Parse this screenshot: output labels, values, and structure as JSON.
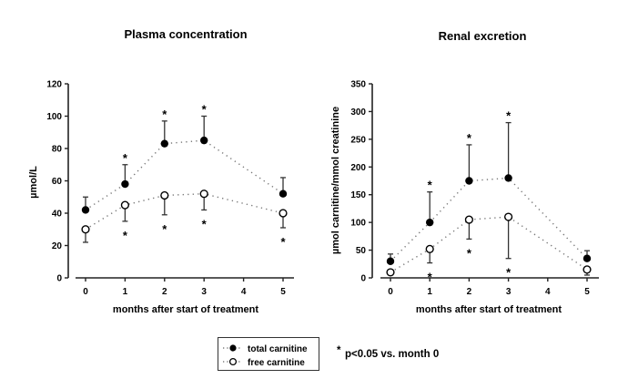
{
  "chart_data": [
    {
      "type": "line",
      "title": "Plasma concentration",
      "xlabel": "months after start of treatment",
      "ylabel": "µmol/L",
      "ylim": [
        0,
        120
      ],
      "yticks": [
        0,
        20,
        40,
        60,
        80,
        100,
        120
      ],
      "xlim": [
        0,
        5
      ],
      "xticks": [
        0,
        1,
        2,
        3,
        4,
        5
      ],
      "grid": false,
      "series": [
        {
          "name": "total carnitine",
          "marker": "filled-circle",
          "x": [
            0,
            1,
            2,
            3,
            5
          ],
          "values": [
            42,
            58,
            83,
            85,
            52
          ],
          "error_upper": [
            50,
            70,
            97,
            100,
            62
          ],
          "significant": [
            false,
            true,
            true,
            true,
            false
          ],
          "star_position": "above"
        },
        {
          "name": "free carnitine",
          "marker": "open-circle",
          "x": [
            0,
            1,
            2,
            3,
            5
          ],
          "values": [
            30,
            45,
            51,
            52,
            40
          ],
          "error_lower": [
            22,
            35,
            39,
            42,
            31
          ],
          "significant": [
            false,
            true,
            true,
            true,
            true
          ],
          "star_position": "below"
        }
      ]
    },
    {
      "type": "line",
      "title": "Renal excretion",
      "xlabel": "months after start of treatment",
      "ylabel": "µmol carnitine/mmol creatinine",
      "ylim": [
        0,
        350
      ],
      "yticks": [
        0,
        50,
        100,
        150,
        200,
        250,
        300,
        350
      ],
      "xlim": [
        0,
        5
      ],
      "xticks": [
        0,
        1,
        2,
        3,
        4,
        5
      ],
      "grid": false,
      "series": [
        {
          "name": "total carnitine",
          "marker": "filled-circle",
          "x": [
            0,
            1,
            2,
            3,
            5
          ],
          "values": [
            30,
            100,
            175,
            180,
            35
          ],
          "error_upper": [
            43,
            155,
            240,
            280,
            49
          ],
          "significant": [
            false,
            true,
            true,
            true,
            false
          ],
          "star_position": "above"
        },
        {
          "name": "free carnitine",
          "marker": "open-circle",
          "x": [
            0,
            1,
            2,
            3,
            5
          ],
          "values": [
            10,
            52,
            105,
            110,
            15
          ],
          "error_lower": [
            10,
            27,
            70,
            35,
            5
          ],
          "significant": [
            false,
            true,
            true,
            true,
            false
          ],
          "star_position": "below"
        }
      ]
    }
  ],
  "legend": {
    "position": "bottom-center",
    "items": [
      {
        "label": "total carnitine",
        "marker": "filled-circle"
      },
      {
        "label": "free carnitine",
        "marker": "open-circle"
      }
    ]
  },
  "significance_note": "p<0.05 vs. month 0",
  "significance_symbol": "*"
}
